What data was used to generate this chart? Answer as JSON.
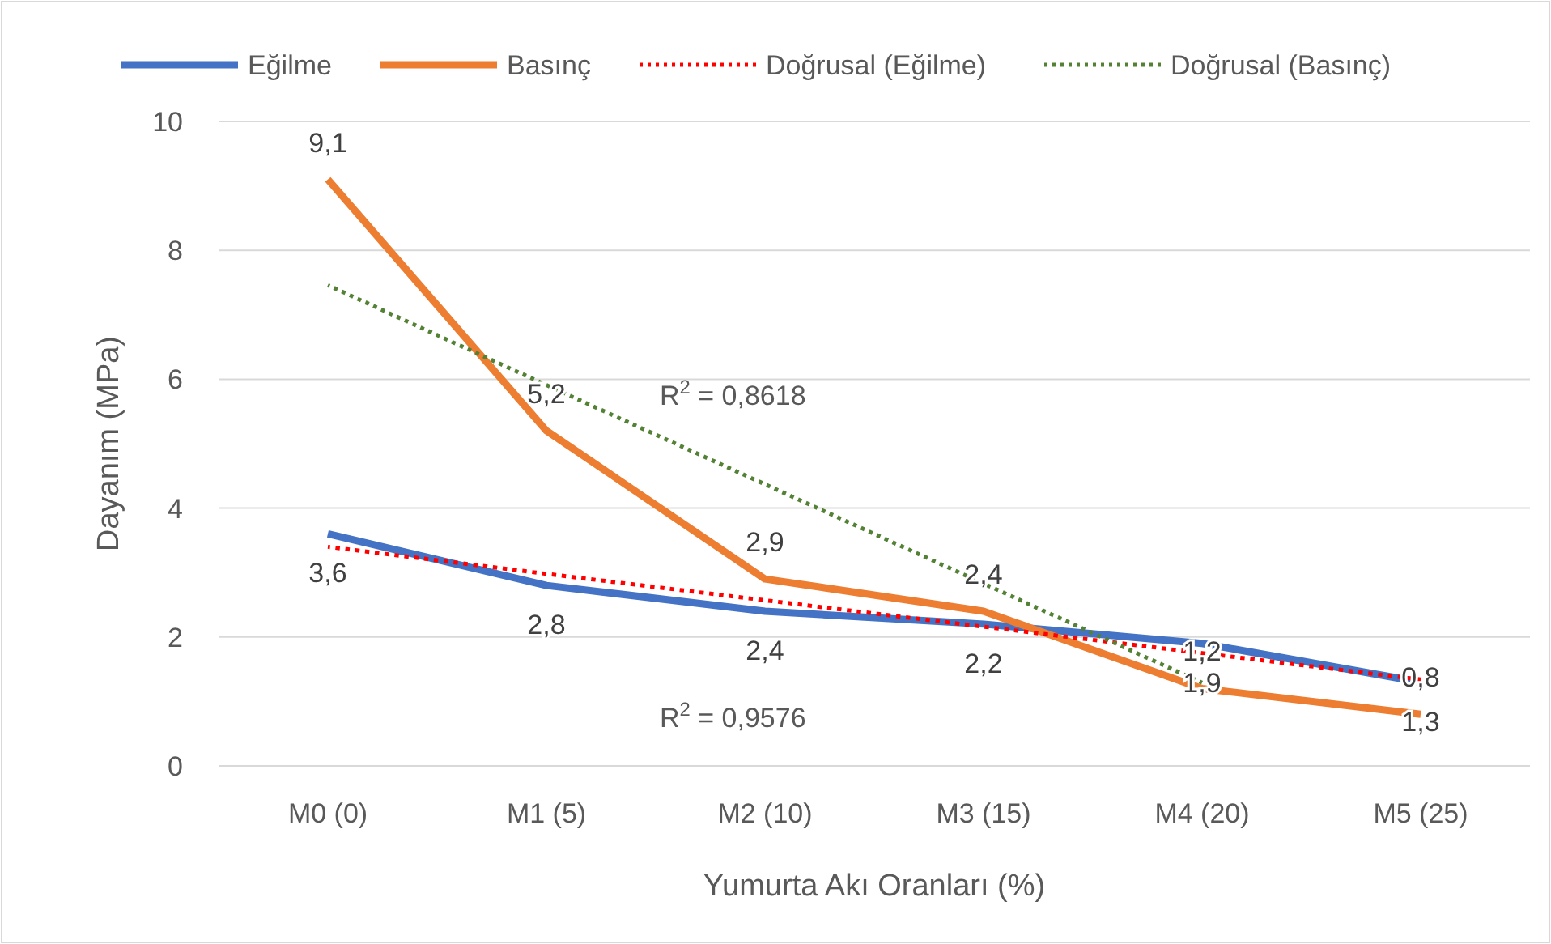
{
  "chart_data": {
    "type": "line",
    "xlabel": "Yumurta Akı Oranları (%)",
    "ylabel": "Dayanım (MPa)",
    "categories": [
      "M0 (0)",
      "M1 (5)",
      "M2 (10)",
      "M3 (15)",
      "M4 (20)",
      "M5 (25)"
    ],
    "ylim": [
      0,
      10
    ],
    "yticks": [
      0,
      2,
      4,
      6,
      8,
      10
    ],
    "grid": "y",
    "legend": "top",
    "marker": "none",
    "series": [
      {
        "name": "Eğilme",
        "color": "#4472c4",
        "values": [
          3.6,
          2.8,
          2.4,
          2.2,
          1.9,
          1.3
        ],
        "value_labels": [
          "3,6",
          "2,8",
          "2,4",
          "2,2",
          "1,9",
          "1,3"
        ]
      },
      {
        "name": "Basınç",
        "color": "#ed7d31",
        "values": [
          9.1,
          5.2,
          2.9,
          2.4,
          1.2,
          0.8
        ],
        "value_labels": [
          "9,1",
          "5,2",
          "2,9",
          "2,4",
          "1,2",
          "0,8"
        ]
      },
      {
        "name": "Doğrusal (Eğilme)",
        "color": "#ff0000",
        "line_style": "dotted",
        "values": [
          3.4,
          2.98,
          2.57,
          2.16,
          1.75,
          1.34
        ]
      },
      {
        "name": "Doğrusal (Basınç)",
        "color": "#548235",
        "line_style": "dotted",
        "values": [
          7.46,
          5.91,
          4.37,
          2.83,
          1.29,
          null
        ]
      }
    ],
    "annotations": [
      "R$^{2}$ = 0,8618",
      "R$^{2}$ = 0,9576"
    ]
  }
}
